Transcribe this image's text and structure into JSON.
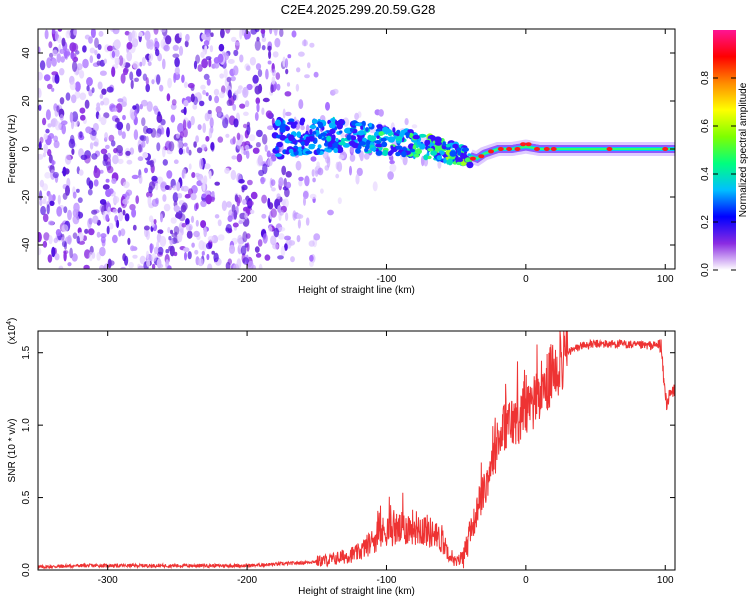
{
  "figure_title": "C2E4.2025.299.20.59.G28",
  "chart_data": [
    {
      "type": "heatmap",
      "title": "C2E4.2025.299.20.59.G28",
      "xlabel": "Height of straight line (km)",
      "ylabel": "Frequency (Hz)",
      "xlim": [
        -350,
        107
      ],
      "ylim": [
        -50,
        50
      ],
      "x_ticks": [
        -300,
        -200,
        -100,
        0,
        100
      ],
      "y_ticks": [
        -40,
        -20,
        0,
        20,
        40
      ],
      "colorbar": {
        "label": "Normalized spectral amplitude",
        "ticks": [
          0.0,
          0.2,
          0.4,
          0.6,
          0.8
        ],
        "range": [
          0,
          1
        ],
        "colormap": [
          "#ffffff",
          "#8a2be2",
          "#0000ff",
          "#00bfff",
          "#00ff7f",
          "#7fff00",
          "#ffff00",
          "#ff8c00",
          "#ff0000",
          "#ff1493"
        ]
      },
      "ridge": {
        "x": [
          -180,
          -150,
          -130,
          -110,
          -90,
          -70,
          -50,
          -40,
          -35,
          -30,
          -20,
          -10,
          0,
          10,
          20,
          50,
          107
        ],
        "y": [
          4,
          5,
          6,
          4,
          3,
          1,
          -2,
          -3,
          -4,
          -2,
          0,
          0,
          1,
          0,
          0,
          0,
          0
        ]
      },
      "grid": false
    },
    {
      "type": "line",
      "xlabel": "Height of straight line (km)",
      "ylabel": "SNR (10 * v/v)",
      "y_multiplier": "(x10^4)",
      "y_multiplier_base": "(x10",
      "y_multiplier_exp": "4",
      "y_multiplier_close": ")",
      "xlim": [
        -350,
        107
      ],
      "ylim": [
        0,
        1.65
      ],
      "x_ticks": [
        -300,
        -200,
        -100,
        0,
        100
      ],
      "y_ticks": [
        0.0,
        0.5,
        1.0,
        1.5
      ],
      "color": "#ee3333",
      "series": [
        {
          "x": [
            -350,
            -320,
            -300,
            -280,
            -260,
            -240,
            -220,
            -200,
            -180,
            -160,
            -140,
            -120,
            -110,
            -100,
            -90,
            -80,
            -70,
            -60,
            -55,
            -50,
            -45,
            -40,
            -35,
            -30,
            -25,
            -20,
            -15,
            -10,
            -5,
            0,
            5,
            10,
            15,
            20,
            25,
            30,
            40,
            50,
            60,
            70,
            80,
            90,
            97,
            99,
            101,
            103,
            107
          ],
          "y": [
            0.02,
            0.03,
            0.03,
            0.03,
            0.03,
            0.03,
            0.03,
            0.03,
            0.04,
            0.05,
            0.07,
            0.12,
            0.2,
            0.28,
            0.28,
            0.3,
            0.27,
            0.2,
            0.12,
            0.05,
            0.1,
            0.25,
            0.4,
            0.55,
            0.72,
            0.88,
            1.0,
            1.02,
            1.05,
            1.1,
            1.15,
            1.2,
            1.28,
            1.38,
            1.45,
            1.5,
            1.55,
            1.56,
            1.56,
            1.56,
            1.55,
            1.55,
            1.55,
            1.3,
            1.15,
            1.2,
            1.25
          ]
        }
      ],
      "grid": false
    }
  ]
}
